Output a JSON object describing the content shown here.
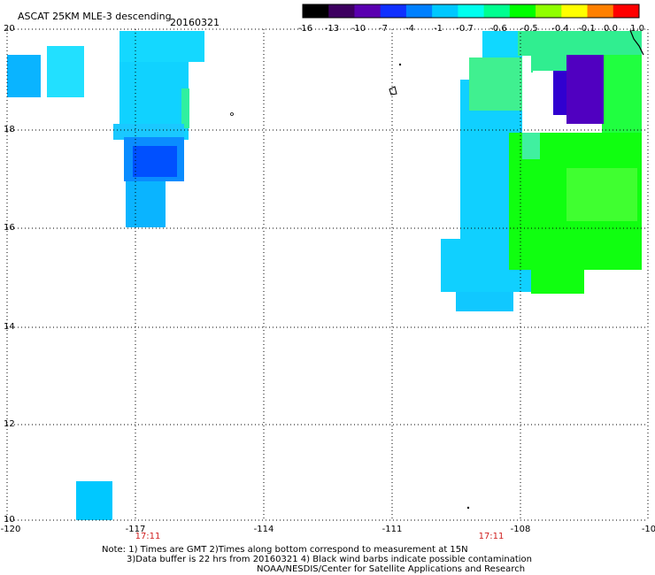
{
  "header": {
    "title_left": "ASCAT 25KM MLE-3 descending",
    "title_right": "20160321"
  },
  "colorbar": {
    "labels": [
      "-16",
      "-13",
      "-10",
      "-7",
      "-4",
      "-1",
      "-0.7",
      "-0.6",
      "-0.5",
      "-0.4",
      "-0.1",
      "0.0",
      "1.0"
    ],
    "colors": [
      "#000000",
      "#3d0060",
      "#5a00b0",
      "#1030ff",
      "#0080ff",
      "#00c8ff",
      "#00ffee",
      "#00ff90",
      "#00ff00",
      "#90ff00",
      "#ffff00",
      "#ff8000",
      "#ff0000"
    ]
  },
  "axes": {
    "lat_labels": [
      "20",
      "18",
      "16",
      "14",
      "12",
      "10"
    ],
    "lon_labels": [
      "-120",
      "-117",
      "-114",
      "-111",
      "-108",
      "-10"
    ],
    "time_labels": [
      "17:11",
      "17:11"
    ]
  },
  "notes": {
    "line1": "Note: 1) Times are GMT 2)Times along bottom correspond to measurement at 15N",
    "line2": "3)Data buffer is 22 hrs from 20160321 4) Black wind barbs indicate possible contamination",
    "line3": "NOAA/NESDIS/Center for Satellite Applications and Research"
  },
  "colors": {
    "cyan": "#00d8ff",
    "light_cyan": "#20f0ff",
    "blue": "#0060ff",
    "deep_blue": "#0030e0",
    "green": "#00ff00",
    "light_green": "#40ff60",
    "purple": "#5000c0"
  }
}
